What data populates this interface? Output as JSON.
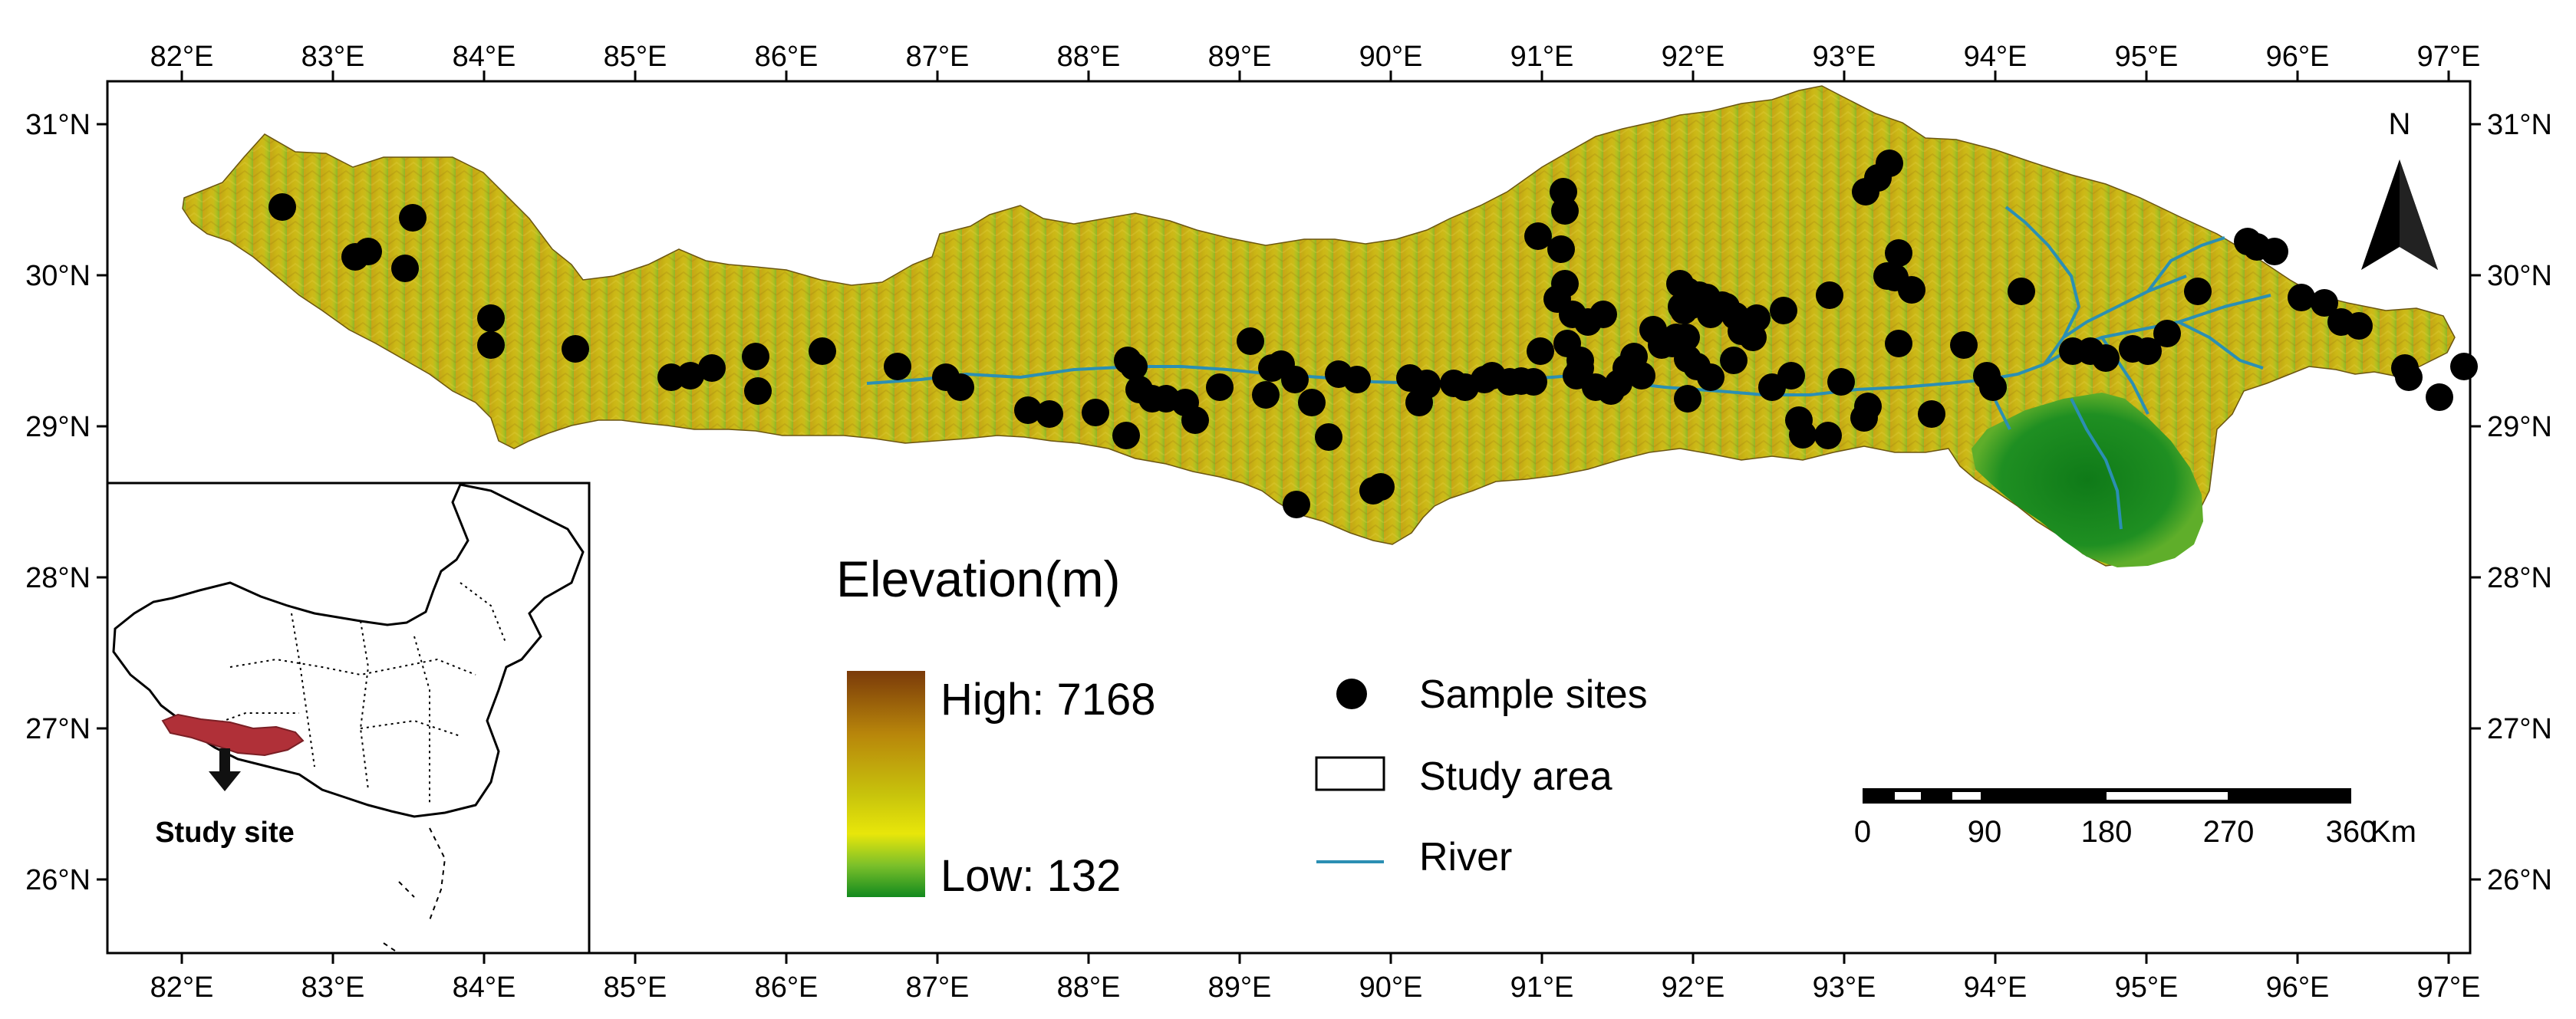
{
  "map": {
    "lon_labels": [
      "82°E",
      "83°E",
      "84°E",
      "85°E",
      "86°E",
      "87°E",
      "88°E",
      "89°E",
      "90°E",
      "91°E",
      "92°E",
      "93°E",
      "94°E",
      "95°E",
      "96°E",
      "97°E"
    ],
    "lat_labels": [
      "31°N",
      "30°N",
      "29°N",
      "28°N",
      "27°N",
      "26°N"
    ]
  },
  "legend": {
    "title": "Elevation(m)",
    "high_label": "High: 7168",
    "low_label": "Low: 132",
    "sample_sites_label": "Sample sites",
    "study_area_label": "Study area",
    "river_label": "River",
    "colors": {
      "high": "#7a3a0a",
      "mid": "#b89a12",
      "yellow": "#e8e60a",
      "low": "#128a1e",
      "river": "#2b8fb3"
    }
  },
  "scale_bar": {
    "labels": [
      "0",
      "90",
      "180",
      "270",
      "360"
    ],
    "unit": "Km"
  },
  "north_arrow": {
    "label": "N"
  },
  "inset": {
    "label": "Study site",
    "highlight_color": "#b03038"
  }
}
